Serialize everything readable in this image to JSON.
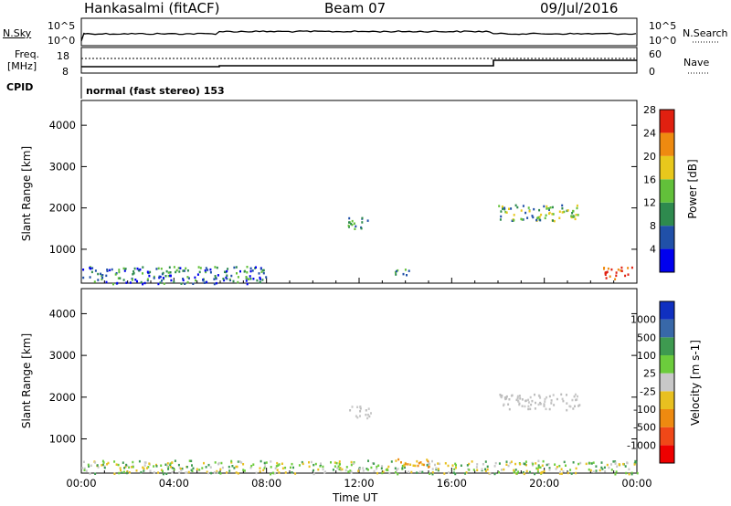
{
  "header": {
    "station": "Hankasalmi (fitACF)",
    "beam": "Beam 07",
    "date": "09/Jul/2016"
  },
  "noise_panel": {
    "left_label": "N.Sky",
    "right_label": "N.Search",
    "left_ticks": [
      "10^5",
      "10^0"
    ],
    "right_ticks": [
      "10^5",
      "10^0"
    ]
  },
  "freq_panel": {
    "left_label_1": "Freq.",
    "left_label_2": "[MHz]",
    "left_ticks": [
      "18",
      "8"
    ],
    "right_label": "Nave",
    "right_ticks": [
      "60",
      "0"
    ]
  },
  "cpid": {
    "label": "CPID",
    "value": "normal (fast stereo) 153"
  },
  "chart_data": [
    {
      "type": "heatmap",
      "parameter": "Power",
      "ylabel": "Slant Range [km]",
      "xlabel": "",
      "x_ticks": [
        "00:00",
        "04:00",
        "08:00",
        "12:00",
        "16:00",
        "20:00",
        "00:00"
      ],
      "y_ticks": [
        "1000",
        "2000",
        "3000",
        "4000"
      ],
      "ylim": [
        180,
        4600
      ],
      "colorbar": {
        "label": "Power [dB]",
        "ticks": [
          "4",
          "8",
          "12",
          "16",
          "20",
          "24",
          "28"
        ],
        "colors": [
          "#0000ee",
          "#2050a8",
          "#2e8a4e",
          "#62c03a",
          "#e8c81c",
          "#ee8a10",
          "#e02010"
        ]
      },
      "echo_regions": [
        {
          "t_start_h": 0.0,
          "t_end_h": 8.0,
          "r_start_km": 180,
          "r_end_km": 600,
          "level": "low-mid"
        },
        {
          "t_start_h": 11.5,
          "t_end_h": 12.5,
          "r_start_km": 1500,
          "r_end_km": 1800,
          "level": "mid"
        },
        {
          "t_start_h": 13.5,
          "t_end_h": 14.2,
          "r_start_km": 400,
          "r_end_km": 600,
          "level": "mid"
        },
        {
          "t_start_h": 18.0,
          "t_end_h": 21.5,
          "r_start_km": 1700,
          "r_end_km": 2100,
          "level": "mid-high"
        },
        {
          "t_start_h": 22.5,
          "t_end_h": 23.8,
          "r_start_km": 300,
          "r_end_km": 600,
          "level": "high"
        }
      ]
    },
    {
      "type": "heatmap",
      "parameter": "Velocity",
      "ylabel": "Slant Range [km]",
      "xlabel": "Time UT",
      "x_ticks": [
        "00:00",
        "04:00",
        "08:00",
        "12:00",
        "16:00",
        "20:00",
        "00:00"
      ],
      "y_ticks": [
        "1000",
        "2000",
        "3000",
        "4000"
      ],
      "ylim": [
        180,
        4600
      ],
      "colorbar": {
        "label": "Velocity [m s-1]",
        "ticks": [
          "1000",
          "500",
          "100",
          "25",
          "-25",
          "-100",
          "-500",
          "-1000"
        ],
        "colors": [
          "#1030c0",
          "#3868a8",
          "#3e9a50",
          "#6ccc3c",
          "#c8c8c8",
          "#e8c020",
          "#ee8a10",
          "#f04818",
          "#ee0000"
        ]
      },
      "echo_regions": [
        {
          "t_start_h": 0.0,
          "t_end_h": 24.0,
          "r_start_km": 180,
          "r_end_km": 500,
          "level": "ground-scatter-green"
        },
        {
          "t_start_h": 11.5,
          "t_end_h": 12.5,
          "r_start_km": 1500,
          "r_end_km": 1800,
          "level": "grey"
        },
        {
          "t_start_h": 18.0,
          "t_end_h": 21.5,
          "r_start_km": 1700,
          "r_end_km": 2100,
          "level": "grey"
        },
        {
          "t_start_h": 13.5,
          "t_end_h": 15.0,
          "r_start_km": 350,
          "r_end_km": 550,
          "level": "orange"
        }
      ]
    }
  ]
}
